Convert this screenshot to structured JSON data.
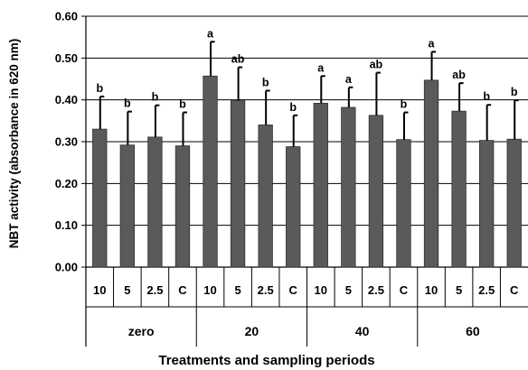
{
  "chart_data": {
    "type": "bar",
    "xlabel": "Treatments and sampling periods",
    "ylabel": "NBT activity (absorbance in 620 nm)",
    "ylim": [
      0,
      0.6
    ],
    "yticks": [
      "0.00",
      "0.10",
      "0.20",
      "0.30",
      "0.40",
      "0.50",
      "0.60"
    ],
    "grid": "horizontal",
    "colors": {
      "bar": "#5a5a5a",
      "bar_stroke": "#2e2e2e",
      "error": "#000000",
      "grid": "#000000"
    },
    "groups": [
      {
        "label": "zero",
        "bars": [
          {
            "cat": "10",
            "value": 0.33,
            "error": 0.078,
            "sig": "b"
          },
          {
            "cat": "5",
            "value": 0.292,
            "error": 0.08,
            "sig": "b"
          },
          {
            "cat": "2.5",
            "value": 0.311,
            "error": 0.076,
            "sig": "b"
          },
          {
            "cat": "C",
            "value": 0.29,
            "error": 0.08,
            "sig": "b"
          }
        ]
      },
      {
        "label": "20",
        "bars": [
          {
            "cat": "10",
            "value": 0.457,
            "error": 0.082,
            "sig": "a"
          },
          {
            "cat": "5",
            "value": 0.398,
            "error": 0.08,
            "sig": "ab"
          },
          {
            "cat": "2.5",
            "value": 0.34,
            "error": 0.082,
            "sig": "b"
          },
          {
            "cat": "C",
            "value": 0.288,
            "error": 0.075,
            "sig": "b"
          }
        ]
      },
      {
        "label": "40",
        "bars": [
          {
            "cat": "10",
            "value": 0.392,
            "error": 0.065,
            "sig": "a"
          },
          {
            "cat": "5",
            "value": 0.382,
            "error": 0.048,
            "sig": "a"
          },
          {
            "cat": "2.5",
            "value": 0.363,
            "error": 0.102,
            "sig": "ab"
          },
          {
            "cat": "C",
            "value": 0.305,
            "error": 0.065,
            "sig": "b"
          }
        ]
      },
      {
        "label": "60",
        "bars": [
          {
            "cat": "10",
            "value": 0.447,
            "error": 0.068,
            "sig": "a"
          },
          {
            "cat": "5",
            "value": 0.373,
            "error": 0.067,
            "sig": "ab"
          },
          {
            "cat": "2.5",
            "value": 0.303,
            "error": 0.085,
            "sig": "b"
          },
          {
            "cat": "C",
            "value": 0.306,
            "error": 0.093,
            "sig": "b"
          }
        ]
      }
    ]
  }
}
